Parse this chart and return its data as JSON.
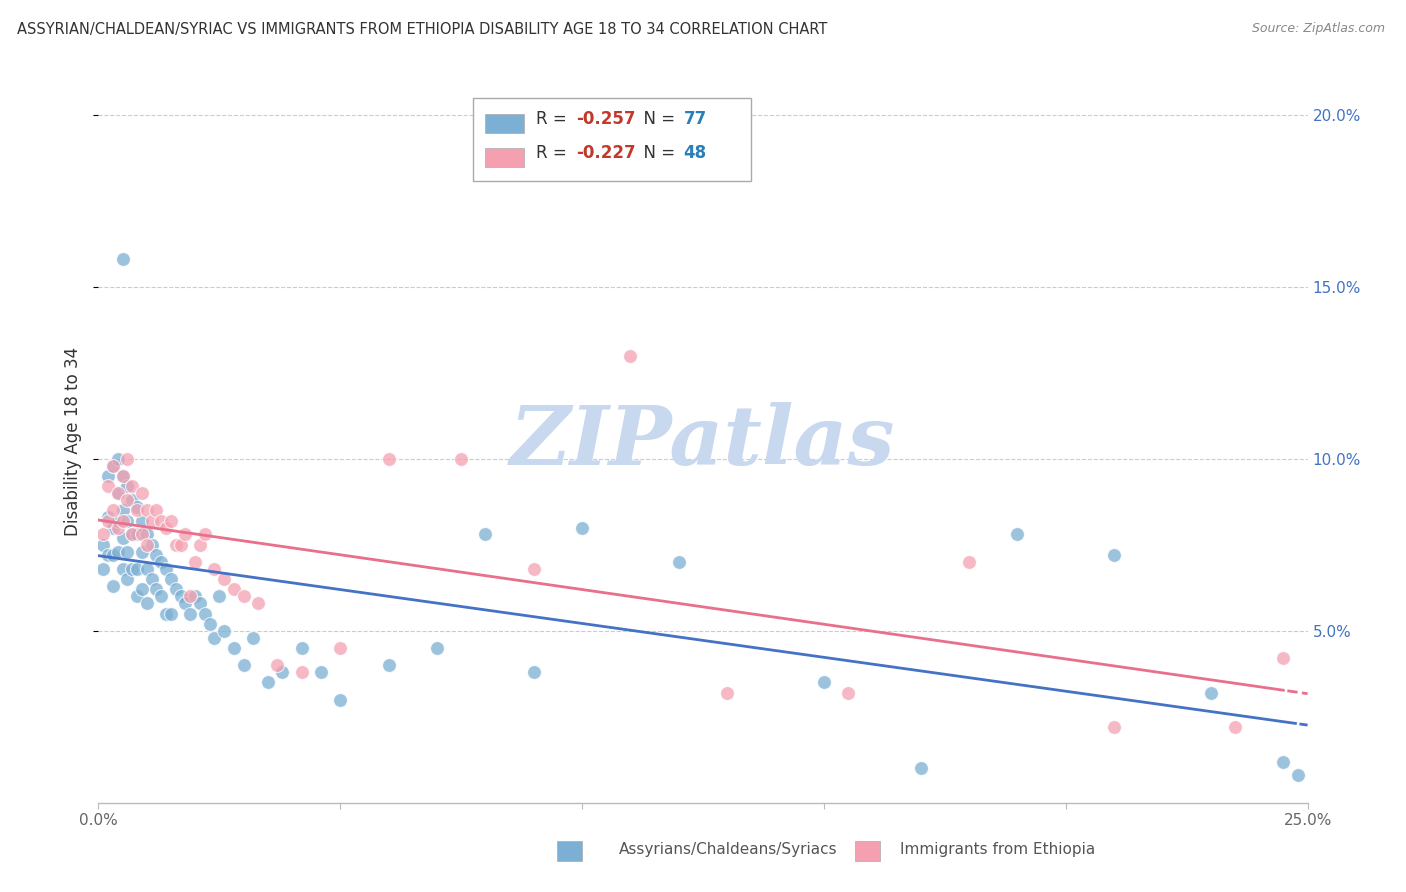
{
  "title": "ASSYRIAN/CHALDEAN/SYRIAC VS IMMIGRANTS FROM ETHIOPIA DISABILITY AGE 18 TO 34 CORRELATION CHART",
  "source": "Source: ZipAtlas.com",
  "ylabel": "Disability Age 18 to 34",
  "xlim": [
    0.0,
    0.25
  ],
  "ylim": [
    0.0,
    0.21
  ],
  "blue_color": "#7bafd4",
  "pink_color": "#f4a0b0",
  "blue_line_color": "#4472c4",
  "pink_line_color": "#e8708a",
  "grid_color": "#cccccc",
  "right_axis_color": "#4472c4",
  "background_color": "#ffffff",
  "watermark_text": "ZIPatlas",
  "watermark_color": "#c8d8ee",
  "R_blue": -0.257,
  "N_blue": 77,
  "R_pink": -0.227,
  "N_pink": 48,
  "legend_R_color": "#c0392b",
  "legend_N_color": "#2980b9",
  "blue_scatter_x": [
    0.001,
    0.001,
    0.002,
    0.002,
    0.002,
    0.003,
    0.003,
    0.003,
    0.003,
    0.004,
    0.004,
    0.004,
    0.004,
    0.005,
    0.005,
    0.005,
    0.005,
    0.006,
    0.006,
    0.006,
    0.006,
    0.007,
    0.007,
    0.007,
    0.008,
    0.008,
    0.008,
    0.008,
    0.009,
    0.009,
    0.009,
    0.01,
    0.01,
    0.01,
    0.011,
    0.011,
    0.012,
    0.012,
    0.013,
    0.013,
    0.014,
    0.014,
    0.015,
    0.015,
    0.016,
    0.017,
    0.018,
    0.019,
    0.02,
    0.021,
    0.022,
    0.023,
    0.024,
    0.025,
    0.026,
    0.028,
    0.03,
    0.032,
    0.035,
    0.038,
    0.042,
    0.046,
    0.05,
    0.06,
    0.07,
    0.08,
    0.09,
    0.1,
    0.12,
    0.15,
    0.17,
    0.19,
    0.21,
    0.23,
    0.245,
    0.248,
    0.005
  ],
  "blue_scatter_y": [
    0.075,
    0.068,
    0.095,
    0.083,
    0.072,
    0.098,
    0.08,
    0.072,
    0.063,
    0.1,
    0.09,
    0.082,
    0.073,
    0.095,
    0.085,
    0.077,
    0.068,
    0.092,
    0.082,
    0.073,
    0.065,
    0.088,
    0.078,
    0.068,
    0.086,
    0.078,
    0.068,
    0.06,
    0.082,
    0.073,
    0.062,
    0.078,
    0.068,
    0.058,
    0.075,
    0.065,
    0.072,
    0.062,
    0.07,
    0.06,
    0.068,
    0.055,
    0.065,
    0.055,
    0.062,
    0.06,
    0.058,
    0.055,
    0.06,
    0.058,
    0.055,
    0.052,
    0.048,
    0.06,
    0.05,
    0.045,
    0.04,
    0.048,
    0.035,
    0.038,
    0.045,
    0.038,
    0.03,
    0.04,
    0.045,
    0.078,
    0.038,
    0.08,
    0.07,
    0.035,
    0.01,
    0.078,
    0.072,
    0.032,
    0.012,
    0.008,
    0.158
  ],
  "pink_scatter_x": [
    0.001,
    0.002,
    0.002,
    0.003,
    0.003,
    0.004,
    0.004,
    0.005,
    0.005,
    0.006,
    0.006,
    0.007,
    0.007,
    0.008,
    0.009,
    0.009,
    0.01,
    0.01,
    0.011,
    0.012,
    0.013,
    0.014,
    0.015,
    0.016,
    0.017,
    0.018,
    0.019,
    0.02,
    0.021,
    0.022,
    0.024,
    0.026,
    0.028,
    0.03,
    0.033,
    0.037,
    0.042,
    0.05,
    0.06,
    0.075,
    0.09,
    0.11,
    0.13,
    0.155,
    0.18,
    0.21,
    0.235,
    0.245
  ],
  "pink_scatter_y": [
    0.078,
    0.092,
    0.082,
    0.098,
    0.085,
    0.09,
    0.08,
    0.095,
    0.082,
    0.1,
    0.088,
    0.092,
    0.078,
    0.085,
    0.09,
    0.078,
    0.085,
    0.075,
    0.082,
    0.085,
    0.082,
    0.08,
    0.082,
    0.075,
    0.075,
    0.078,
    0.06,
    0.07,
    0.075,
    0.078,
    0.068,
    0.065,
    0.062,
    0.06,
    0.058,
    0.04,
    0.038,
    0.045,
    0.1,
    0.1,
    0.068,
    0.13,
    0.032,
    0.032,
    0.07,
    0.022,
    0.022,
    0.042
  ]
}
